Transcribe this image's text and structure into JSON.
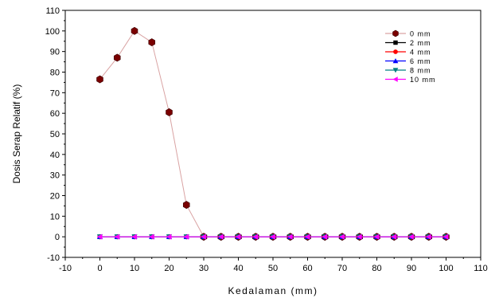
{
  "chart_data": {
    "type": "line",
    "xlabel": "Kedalaman (mm)",
    "ylabel": "Dosis Serap Relatif (%)",
    "xlim": [
      -10,
      110
    ],
    "ylim": [
      -10,
      110
    ],
    "x_ticks": [
      -10,
      0,
      10,
      20,
      30,
      40,
      50,
      60,
      70,
      80,
      90,
      100,
      110
    ],
    "y_ticks": [
      -10,
      0,
      10,
      20,
      30,
      40,
      50,
      60,
      70,
      80,
      90,
      100,
      110
    ],
    "x_tick_labels": [
      "-10",
      "0",
      "10",
      "20",
      "30",
      "40",
      "50",
      "60",
      "70",
      "80",
      "90",
      "100",
      "110"
    ],
    "y_tick_labels": [
      "-10",
      "0",
      "10",
      "20",
      "30",
      "40",
      "50",
      "60",
      "70",
      "80",
      "90",
      "100",
      "110"
    ],
    "grid": false,
    "legend_position": "top-right",
    "series": [
      {
        "name": "0 mm",
        "marker": "hexagon",
        "marker_color": "#7a0000",
        "line_color": "#d9a3a3",
        "x": [
          0,
          5,
          10,
          15,
          20,
          25,
          30,
          35,
          40,
          45,
          50,
          55,
          60,
          65,
          70,
          75,
          80,
          85,
          90,
          95,
          100
        ],
        "y": [
          76.5,
          87,
          100,
          94.5,
          60.5,
          15.5,
          0,
          0,
          0,
          0,
          0,
          0,
          0,
          0,
          0,
          0,
          0,
          0,
          0,
          0,
          0
        ]
      },
      {
        "name": "2 mm",
        "marker": "square",
        "marker_color": "#000000",
        "line_color": "#000000",
        "x": [
          0,
          5,
          10,
          15,
          20,
          25,
          30,
          35,
          40,
          45,
          50,
          55,
          60,
          65,
          70,
          75,
          80,
          85,
          90,
          95,
          100
        ],
        "y": [
          0,
          0,
          0,
          0,
          0,
          0,
          0,
          0,
          0,
          0,
          0,
          0,
          0,
          0,
          0,
          0,
          0,
          0,
          0,
          0,
          0
        ]
      },
      {
        "name": "4 mm",
        "marker": "circle",
        "marker_color": "#ff0000",
        "line_color": "#ff0000",
        "x": [
          0,
          5,
          10,
          15,
          20,
          25,
          30,
          35,
          40,
          45,
          50,
          55,
          60,
          65,
          70,
          75,
          80,
          85,
          90,
          95,
          100
        ],
        "y": [
          0,
          0,
          0,
          0,
          0,
          0,
          0,
          0,
          0,
          0,
          0,
          0,
          0,
          0,
          0,
          0,
          0,
          0,
          0,
          0,
          0
        ]
      },
      {
        "name": "6 mm",
        "marker": "triangle-up",
        "marker_color": "#0000ff",
        "line_color": "#0000ff",
        "x": [
          0,
          5,
          10,
          15,
          20,
          25,
          30,
          35,
          40,
          45,
          50,
          55,
          60,
          65,
          70,
          75,
          80,
          85,
          90,
          95,
          100
        ],
        "y": [
          0,
          0,
          0,
          0,
          0,
          0,
          0,
          0,
          0,
          0,
          0,
          0,
          0,
          0,
          0,
          0,
          0,
          0,
          0,
          0,
          0
        ]
      },
      {
        "name": "8 mm",
        "marker": "triangle-down",
        "marker_color": "#008080",
        "line_color": "#008080",
        "x": [
          0,
          5,
          10,
          15,
          20,
          25,
          30,
          35,
          40,
          45,
          50,
          55,
          60,
          65,
          70,
          75,
          80,
          85,
          90,
          95,
          100
        ],
        "y": [
          0,
          0,
          0,
          0,
          0,
          0,
          0,
          0,
          0,
          0,
          0,
          0,
          0,
          0,
          0,
          0,
          0,
          0,
          0,
          0,
          0
        ]
      },
      {
        "name": "10 mm",
        "marker": "triangle-left",
        "marker_color": "#ff00ff",
        "line_color": "#ff00ff",
        "x": [
          0,
          5,
          10,
          15,
          20,
          25,
          30,
          35,
          40,
          45,
          50,
          55,
          60,
          65,
          70,
          75,
          80,
          85,
          90,
          95,
          100
        ],
        "y": [
          0,
          0,
          0,
          0,
          0,
          0,
          0,
          0,
          0,
          0,
          0,
          0,
          0,
          0,
          0,
          0,
          0,
          0,
          0,
          0,
          0
        ]
      }
    ]
  }
}
